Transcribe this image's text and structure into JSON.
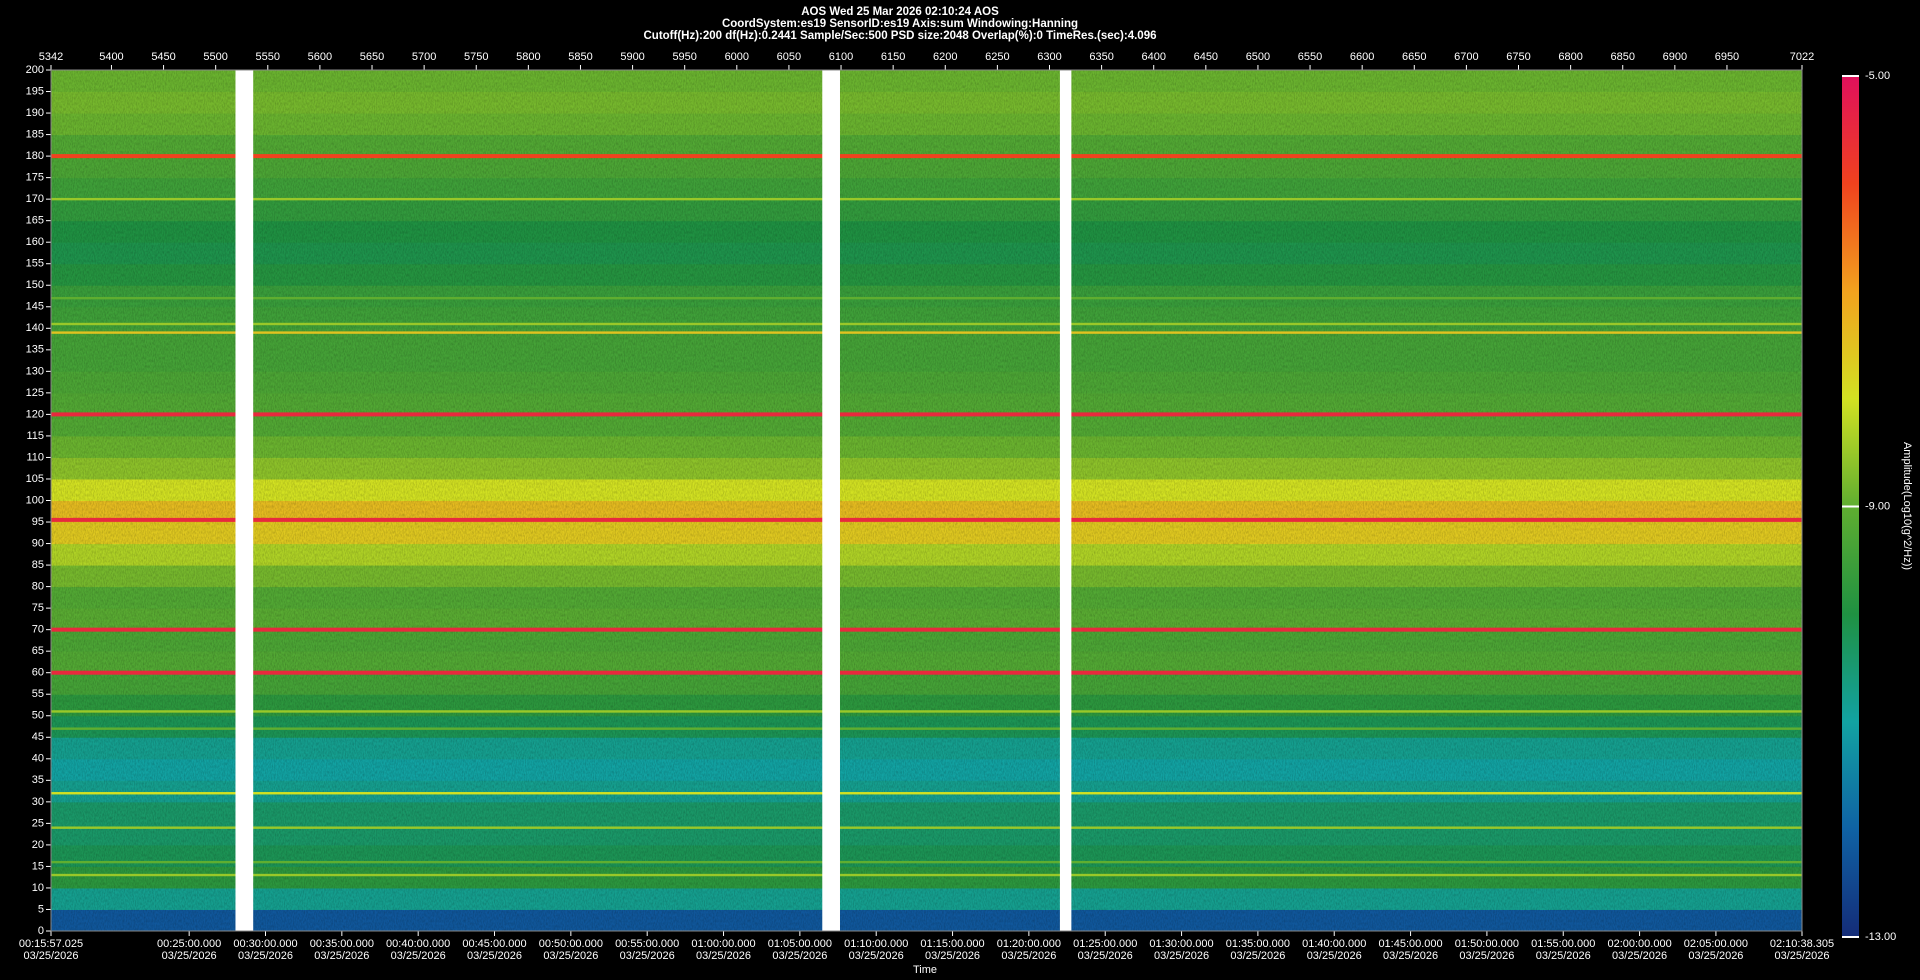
{
  "chart_data": {
    "type": "spectrogram",
    "title": [
      "AOS  Wed 25 Mar 2026 02:10:24  AOS",
      "CoordSystem:es19   SensorID:es19    Axis:sum    Windowing:Hanning",
      "Cutoff(Hz):200      df(Hz):0.2441      Sample/Sec:500      PSD size:2048      Overlap(%):0      TimeRes.(sec):4.096"
    ],
    "x_label": "Time",
    "colorbar_label": "Amplitude(Log10(g^2/Hz))",
    "xlim": [
      5342,
      7022
    ],
    "xticks": [
      5342,
      5400,
      5450,
      5500,
      5550,
      5600,
      5650,
      5700,
      5750,
      5800,
      5850,
      5900,
      5950,
      6000,
      6050,
      6100,
      6150,
      6200,
      6250,
      6300,
      6350,
      6400,
      6450,
      6500,
      6550,
      6600,
      6650,
      6700,
      6750,
      6800,
      6850,
      6900,
      6950,
      7022
    ],
    "time_lim": [
      "2026-03-25T00:15:57.025",
      "2026-03-25T02:10:38.305"
    ],
    "time_ticks": [
      {
        "value": "2026-03-25T00:15:57.025",
        "time": "00:15:57.025",
        "date": "03/25/2026"
      },
      {
        "value": "2026-03-25T00:25:00.000",
        "time": "00:25:00.000",
        "date": "03/25/2026"
      },
      {
        "value": "2026-03-25T00:30:00.000",
        "time": "00:30:00.000",
        "date": "03/25/2026"
      },
      {
        "value": "2026-03-25T00:35:00.000",
        "time": "00:35:00.000",
        "date": "03/25/2026"
      },
      {
        "value": "2026-03-25T00:40:00.000",
        "time": "00:40:00.000",
        "date": "03/25/2026"
      },
      {
        "value": "2026-03-25T00:45:00.000",
        "time": "00:45:00.000",
        "date": "03/25/2026"
      },
      {
        "value": "2026-03-25T00:50:00.000",
        "time": "00:50:00.000",
        "date": "03/25/2026"
      },
      {
        "value": "2026-03-25T00:55:00.000",
        "time": "00:55:00.000",
        "date": "03/25/2026"
      },
      {
        "value": "2026-03-25T01:00:00.000",
        "time": "01:00:00.000",
        "date": "03/25/2026"
      },
      {
        "value": "2026-03-25T01:05:00.000",
        "time": "01:05:00.000",
        "date": "03/25/2026"
      },
      {
        "value": "2026-03-25T01:10:00.000",
        "time": "01:10:00.000",
        "date": "03/25/2026"
      },
      {
        "value": "2026-03-25T01:15:00.000",
        "time": "01:15:00.000",
        "date": "03/25/2026"
      },
      {
        "value": "2026-03-25T01:20:00.000",
        "time": "01:20:00.000",
        "date": "03/25/2026"
      },
      {
        "value": "2026-03-25T01:25:00.000",
        "time": "01:25:00.000",
        "date": "03/25/2026"
      },
      {
        "value": "2026-03-25T01:30:00.000",
        "time": "01:30:00.000",
        "date": "03/25/2026"
      },
      {
        "value": "2026-03-25T01:35:00.000",
        "time": "01:35:00.000",
        "date": "03/25/2026"
      },
      {
        "value": "2026-03-25T01:40:00.000",
        "time": "01:40:00.000",
        "date": "03/25/2026"
      },
      {
        "value": "2026-03-25T01:45:00.000",
        "time": "01:45:00.000",
        "date": "03/25/2026"
      },
      {
        "value": "2026-03-25T01:50:00.000",
        "time": "01:50:00.000",
        "date": "03/25/2026"
      },
      {
        "value": "2026-03-25T01:55:00.000",
        "time": "01:55:00.000",
        "date": "03/25/2026"
      },
      {
        "value": "2026-03-25T02:00:00.000",
        "time": "02:00:00.000",
        "date": "03/25/2026"
      },
      {
        "value": "2026-03-25T02:05:00.000",
        "time": "02:05:00.000",
        "date": "03/25/2026"
      },
      {
        "value": "2026-03-25T02:10:38.305",
        "time": "02:10:38.305",
        "date": "03/25/2026"
      }
    ],
    "ylim": [
      0,
      200
    ],
    "yticks": [
      0,
      5,
      10,
      15,
      20,
      25,
      30,
      35,
      40,
      45,
      50,
      55,
      60,
      65,
      70,
      75,
      80,
      85,
      90,
      95,
      100,
      105,
      110,
      115,
      120,
      125,
      130,
      135,
      140,
      145,
      150,
      155,
      160,
      165,
      170,
      175,
      180,
      185,
      190,
      195,
      200
    ],
    "clim": [
      -13,
      -5
    ],
    "cticks": [
      {
        "value": -5,
        "label": "-5.00"
      },
      {
        "value": -9,
        "label": "-9.00"
      },
      {
        "value": -13,
        "label": "-13.00"
      }
    ],
    "colormap": [
      "#142c78",
      "#0f62a4",
      "#12a2a2",
      "#1f9142",
      "#5fae30",
      "#d2e122",
      "#f2a21e",
      "#f0421e",
      "#e0105c"
    ],
    "bins": [
      0,
      5,
      10,
      15,
      20,
      25,
      30,
      35,
      40,
      45,
      50,
      55,
      60,
      65,
      70,
      75,
      80,
      85,
      90,
      95,
      100,
      105,
      110,
      115,
      120,
      125,
      130,
      135,
      140,
      145,
      150,
      155,
      160,
      165,
      170,
      175,
      180,
      185,
      190,
      195,
      200
    ],
    "amplitude": [
      -12.2,
      -10.8,
      -9.8,
      -10.2,
      -10.4,
      -10.4,
      -10.8,
      -11,
      -10.8,
      -10.2,
      -9.8,
      -9.4,
      -9.2,
      -9.3,
      -9.1,
      -9.2,
      -8.8,
      -8.3,
      -7.6,
      -7.4,
      -8,
      -8.6,
      -8.9,
      -9.2,
      -9.2,
      -9.3,
      -9.4,
      -9.4,
      -9.5,
      -9.6,
      -9.9,
      -10.1,
      -10,
      -9.7,
      -9.5,
      -9.3,
      -9.2,
      -8.9,
      -8.8,
      -8.9
    ],
    "tones": {
      "freq": [
        180,
        170,
        147,
        141,
        139,
        120,
        95.5,
        70,
        60,
        51,
        47,
        32,
        24,
        16,
        13
      ],
      "amplitude": [
        -6,
        -8.5,
        -9,
        -8.5,
        -7.5,
        -5.5,
        -5.5,
        -5.5,
        -5.5,
        -8.5,
        -9,
        -8,
        -8.5,
        -9,
        -8.5
      ]
    },
    "gaps": [
      [
        5519,
        5536
      ],
      [
        6082,
        6099
      ],
      [
        6310,
        6321
      ]
    ]
  }
}
